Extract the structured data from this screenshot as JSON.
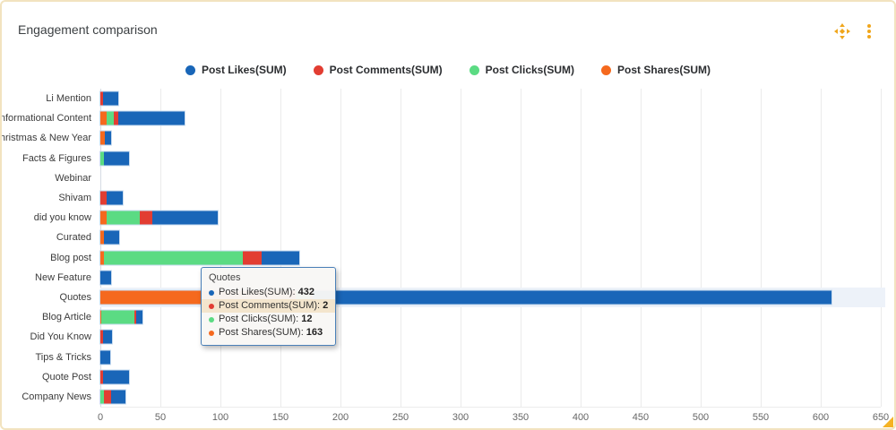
{
  "widget": {
    "title": "Engagement comparison"
  },
  "icons": {
    "move": "move-handle-icon",
    "menu": "kebab-menu-icon",
    "resize": "resize-corner-icon"
  },
  "colors": {
    "accent": "#f0a61b",
    "likes": "#1966b8",
    "comments": "#e23d32",
    "clicks": "#5bdb83",
    "shares": "#f5691e",
    "grid": "#ebebeb",
    "highlight_band": "#edf2f9",
    "tooltip_border": "#4a80b8",
    "tooltip_row_highlight": "#f3e5cd"
  },
  "legend": [
    {
      "label": "Post Likes(SUM)",
      "color": "#1966b8"
    },
    {
      "label": "Post Comments(SUM)",
      "color": "#e23d32"
    },
    {
      "label": "Post Clicks(SUM)",
      "color": "#5bdb83"
    },
    {
      "label": "Post Shares(SUM)",
      "color": "#f5691e"
    }
  ],
  "chart_data": {
    "type": "bar",
    "orientation": "horizontal",
    "stacked": true,
    "title": "Engagement comparison",
    "categories": [
      "Li Mention",
      "Informational Content",
      "Christmas & New Year",
      "Facts & Figures",
      "Webinar",
      "Shivam",
      "did you know",
      "Curated",
      "Blog post",
      "New Feature",
      "Quotes",
      "Blog Article",
      "Did You Know",
      "Tips & Tricks",
      "Quote Post",
      "Company News"
    ],
    "series": [
      {
        "name": "Post Likes(SUM)",
        "color": "#1966b8",
        "values": [
          13,
          55,
          5,
          21,
          0,
          14,
          55,
          13,
          32,
          9,
          432,
          5,
          8,
          8,
          22,
          12
        ]
      },
      {
        "name": "Post Comments(SUM)",
        "color": "#e23d32",
        "values": [
          2,
          4,
          0,
          0,
          0,
          5,
          10,
          0,
          15,
          0,
          2,
          2,
          2,
          0,
          2,
          6
        ]
      },
      {
        "name": "Post Clicks(SUM)",
        "color": "#5bdb83",
        "values": [
          0,
          6,
          0,
          3,
          0,
          0,
          28,
          0,
          116,
          0,
          12,
          27,
          0,
          0,
          0,
          3
        ]
      },
      {
        "name": "Post Shares(SUM)",
        "color": "#f5691e",
        "values": [
          0,
          5,
          4,
          0,
          0,
          0,
          5,
          3,
          3,
          0,
          163,
          1,
          0,
          0,
          0,
          0
        ]
      }
    ],
    "stack_order": [
      "Post Shares(SUM)",
      "Post Clicks(SUM)",
      "Post Comments(SUM)",
      "Post Likes(SUM)"
    ],
    "x_axis": {
      "min": 0,
      "max": 650,
      "tick_step": 50,
      "ticks": [
        0,
        50,
        100,
        150,
        200,
        250,
        300,
        350,
        400,
        450,
        500,
        550,
        600,
        650
      ]
    },
    "grid": true,
    "legend_position": "top",
    "highlighted_category": "Quotes"
  },
  "tooltip": {
    "title": "Quotes",
    "rows": [
      {
        "label": "Post Likes(SUM):",
        "value": "432",
        "color": "#1966b8",
        "highlighted": false
      },
      {
        "label": "Post Comments(SUM):",
        "value": "2",
        "color": "#e23d32",
        "highlighted": true
      },
      {
        "label": "Post Clicks(SUM):",
        "value": "12",
        "color": "#5bdb83",
        "highlighted": false
      },
      {
        "label": "Post Shares(SUM):",
        "value": "163",
        "color": "#f5691e",
        "highlighted": false
      }
    ]
  }
}
